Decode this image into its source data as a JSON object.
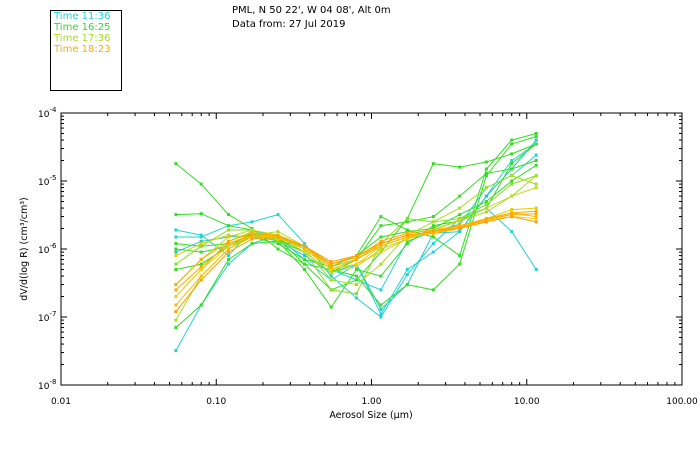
{
  "header": {
    "location": "PML, N 50 22', W 04 08', Alt 0m",
    "data_from": "Data from: 27 Jul 2019"
  },
  "legend": [
    {
      "label": "Time 11:36",
      "color": "#22d3d3"
    },
    {
      "label": "Time 16:25",
      "color": "#33dd22"
    },
    {
      "label": "Time 17:36",
      "color": "#aadd22"
    },
    {
      "label": "Time 18:23",
      "color": "#ffaa00"
    }
  ],
  "chart_data": {
    "type": "line",
    "xlabel": "Aerosol Size (µm)",
    "ylabel": "dV/d(log R) (cm³/cm³)",
    "x_scale": "log",
    "y_scale": "log",
    "xlim": [
      0.01,
      100
    ],
    "ylim": [
      1e-08,
      0.0001
    ],
    "x_ticks": [
      {
        "value": 0.01,
        "label": "0.01"
      },
      {
        "value": 0.1,
        "label": "0.10"
      },
      {
        "value": 1,
        "label": "1.00"
      },
      {
        "value": 10,
        "label": "10.00"
      },
      {
        "value": 100,
        "label": "100.00"
      }
    ],
    "y_ticks": [
      {
        "value": 1e-08,
        "base": "10",
        "exp": "-8"
      },
      {
        "value": 1e-07,
        "base": "10",
        "exp": "-7"
      },
      {
        "value": 1e-06,
        "base": "10",
        "exp": "-6"
      },
      {
        "value": 1e-05,
        "base": "10",
        "exp": "-5"
      },
      {
        "value": 0.0001,
        "base": "10",
        "exp": "-4"
      }
    ],
    "x": [
      0.055,
      0.08,
      0.12,
      0.17,
      0.25,
      0.37,
      0.55,
      0.8,
      1.15,
      1.7,
      2.5,
      3.7,
      5.5,
      8.0,
      11.5
    ],
    "series": [
      {
        "color": "#22d3d3",
        "values": [
          1.9e-06,
          1.6e-06,
          8e-07,
          1.9e-06,
          1.5e-06,
          7e-07,
          3.5e-07,
          6e-07,
          1.1e-07,
          5e-07,
          9e-07,
          1.8e-06,
          6e-06,
          2e-05,
          3.5e-05
        ]
      },
      {
        "color": "#22d3d3",
        "values": [
          1.5e-06,
          1.5e-06,
          2.2e-06,
          2.5e-06,
          3.2e-06,
          1.2e-06,
          4e-07,
          1.9e-07,
          1e-07,
          4.2e-07,
          1.2e-06,
          2.8e-06,
          4e-06,
          1.8e-06,
          5e-07
        ]
      },
      {
        "color": "#22d3d3",
        "values": [
          3.2e-08,
          1.5e-07,
          6e-07,
          1.2e-06,
          1.6e-06,
          1e-06,
          5e-07,
          3.5e-07,
          2.5e-07,
          1.3e-06,
          1.8e-06,
          2.3e-06,
          8e-06,
          1.2e-05,
          2.4e-05
        ]
      },
      {
        "color": "#22c8c8",
        "values": [
          9e-07,
          1.3e-06,
          1.5e-06,
          1.6e-06,
          1.3e-06,
          8e-07,
          4.5e-07,
          6e-07,
          1.3e-07,
          3e-07,
          1.7e-06,
          1.8e-06,
          6e-06,
          1.5e-05,
          4e-05
        ]
      },
      {
        "color": "#33dd22",
        "values": [
          1.8e-05,
          9e-06,
          3.2e-06,
          2e-06,
          1e-06,
          6e-07,
          2.5e-07,
          3.5e-07,
          9e-07,
          2.8e-06,
          1.8e-05,
          1.6e-05,
          1.9e-05,
          2.5e-05,
          3.5e-05
        ]
      },
      {
        "color": "#33dd22",
        "values": [
          3.2e-06,
          3.3e-06,
          2.2e-06,
          1.9e-06,
          1.3e-06,
          5e-07,
          1.4e-07,
          5e-07,
          4e-07,
          1.2e-06,
          2.2e-06,
          2.6e-06,
          4e-06,
          1.8e-05,
          3.5e-05
        ]
      },
      {
        "color": "#33dd22",
        "values": [
          1.2e-06,
          1.1e-06,
          1.2e-06,
          1.6e-06,
          1.4e-06,
          6e-07,
          5e-07,
          4e-07,
          1.5e-07,
          3e-07,
          2.5e-07,
          6e-07,
          1.2e-05,
          3.5e-05,
          4.5e-05
        ]
      },
      {
        "color": "#33dd22",
        "values": [
          1e-06,
          9e-07,
          1.1e-06,
          1.5e-06,
          1.2e-06,
          7e-07,
          5.5e-07,
          8e-07,
          3e-06,
          1.9e-06,
          1.5e-06,
          8e-07,
          1.5e-05,
          4e-05,
          5e-05
        ]
      },
      {
        "color": "#33dd22",
        "values": [
          5e-07,
          6e-07,
          1.1e-06,
          1.7e-06,
          1.4e-06,
          9e-07,
          4.5e-07,
          7e-07,
          2.2e-06,
          2.5e-06,
          3e-06,
          6e-06,
          1.3e-05,
          1.5e-05,
          2e-05
        ]
      },
      {
        "color": "#33dd22",
        "values": [
          7e-08,
          1.5e-07,
          7e-07,
          1.2e-06,
          1.3e-06,
          1.1e-06,
          6e-07,
          8e-07,
          1.5e-06,
          1.8e-06,
          2e-06,
          3.2e-06,
          5e-06,
          1e-05,
          1.7e-05
        ]
      },
      {
        "color": "#88dd22",
        "values": [
          6e-07,
          1.1e-06,
          1.9e-06,
          1.9e-06,
          1.3e-06,
          9e-07,
          2.5e-07,
          2.2e-07,
          1.2e-06,
          2.8e-06,
          2.5e-06,
          2.8e-06,
          4.5e-06,
          9e-06,
          1.2e-05
        ]
      },
      {
        "color": "#aadd22",
        "values": [
          9e-08,
          4e-07,
          1e-06,
          1.6e-06,
          1.8e-06,
          1.1e-06,
          5e-07,
          7e-07,
          1.1e-06,
          1.5e-06,
          1.9e-06,
          2.6e-06,
          3.5e-06,
          6e-06,
          1.2e-05
        ]
      },
      {
        "color": "#aadd22",
        "values": [
          2e-07,
          5e-07,
          1.3e-06,
          1.8e-06,
          1.5e-06,
          1e-06,
          3.5e-07,
          3e-07,
          6e-07,
          1.6e-06,
          2.5e-06,
          4e-06,
          8e-06,
          1.2e-05,
          9e-06
        ]
      },
      {
        "color": "#bbdd22",
        "values": [
          3e-07,
          7e-07,
          1.5e-06,
          1.9e-06,
          1.6e-06,
          9e-07,
          4.5e-07,
          5.5e-07,
          1e-06,
          1.4e-06,
          1.9e-06,
          2.7e-06,
          4e-06,
          6e-06,
          8e-06
        ]
      },
      {
        "color": "#ddd000",
        "values": [
          8e-07,
          1.2e-06,
          1.6e-06,
          1.5e-06,
          1.4e-06,
          1.1e-06,
          5e-07,
          6e-07,
          9e-07,
          1.4e-06,
          1.8e-06,
          2.2e-06,
          2.8e-06,
          3.8e-06,
          4e-06
        ]
      },
      {
        "color": "#ffcc00",
        "values": [
          2e-07,
          5e-07,
          1.1e-06,
          1.6e-06,
          1.5e-06,
          1e-06,
          5e-07,
          6e-07,
          1.1e-06,
          1.5e-06,
          1.7e-06,
          2e-06,
          2.6e-06,
          3e-06,
          2.8e-06
        ]
      },
      {
        "color": "#ffbb00",
        "values": [
          1.5e-07,
          4e-07,
          1e-06,
          1.5e-06,
          1.5e-06,
          1e-06,
          6e-07,
          8e-07,
          1.1e-06,
          1.5e-06,
          1.7e-06,
          2e-06,
          2.7e-06,
          3.4e-06,
          3e-06
        ]
      },
      {
        "color": "#ffaa00",
        "values": [
          2.5e-07,
          5.5e-07,
          1.2e-06,
          1.6e-06,
          1.6e-06,
          1.1e-06,
          5.5e-07,
          7e-07,
          1.2e-06,
          1.6e-06,
          1.8e-06,
          2.1e-06,
          2.7e-06,
          3.2e-06,
          3.3e-06
        ]
      },
      {
        "color": "#ffaa00",
        "values": [
          3e-07,
          7e-07,
          1.3e-06,
          1.7e-06,
          1.6e-06,
          1.1e-06,
          6e-07,
          7.5e-07,
          1.3e-06,
          1.7e-06,
          1.9e-06,
          2.2e-06,
          2.8e-06,
          3.4e-06,
          3.6e-06
        ]
      },
      {
        "color": "#ffa000",
        "values": [
          1.2e-07,
          3.5e-07,
          9e-07,
          1.4e-06,
          1.5e-06,
          1.1e-06,
          6.5e-07,
          8e-07,
          1.2e-06,
          1.6e-06,
          1.8e-06,
          2e-06,
          2.5e-06,
          3e-06,
          2.5e-06
        ]
      }
    ]
  }
}
